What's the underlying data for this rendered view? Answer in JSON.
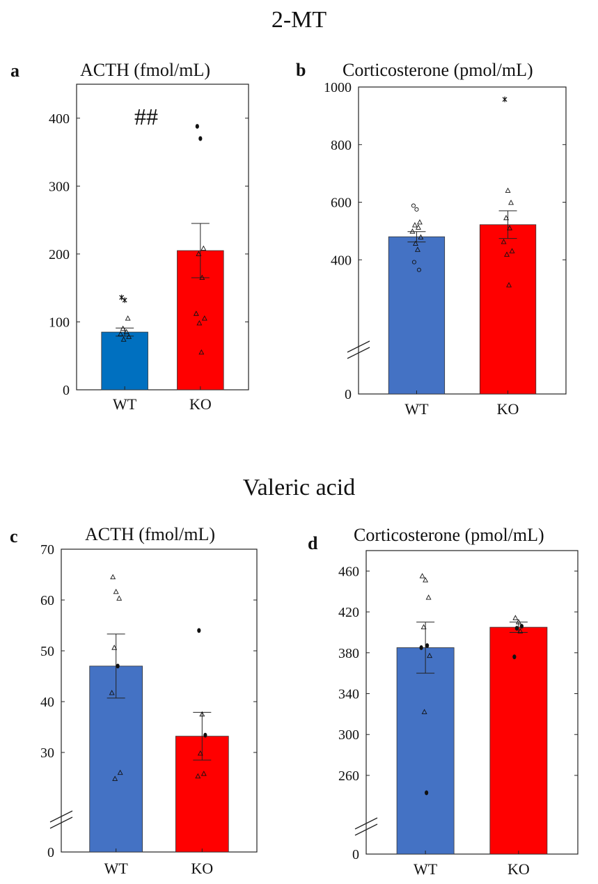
{
  "sections": {
    "top_title": "2-MT",
    "bottom_title": "Valeric acid"
  },
  "colors": {
    "WT_blue_a": "#0070c0",
    "WT_blue": "#4472c4",
    "KO_red": "#ff0000"
  },
  "panels": {
    "a": {
      "letter": "a",
      "title": "ACTH (fmol/mL)",
      "annotation": "##"
    },
    "b": {
      "letter": "b",
      "title": "Corticosterone (pmol/mL)"
    },
    "c": {
      "letter": "c",
      "title": "ACTH (fmol/mL)"
    },
    "d": {
      "letter": "d",
      "title": "Corticosterone (pmol/mL)"
    }
  },
  "chart_data": [
    {
      "id": "a",
      "type": "bar",
      "title": "ACTH (fmol/mL)",
      "categories": [
        "WT",
        "KO"
      ],
      "values": [
        85,
        205
      ],
      "sem": [
        6,
        40
      ],
      "colors": [
        "#0070c0",
        "#ff0000"
      ],
      "ylim": [
        0,
        450
      ],
      "yticks": [
        0,
        100,
        200,
        300,
        400
      ],
      "axis_break": false,
      "annotation": "##",
      "points": [
        {
          "group": "WT",
          "marker": "star",
          "y": 136
        },
        {
          "group": "WT",
          "marker": "star",
          "y": 132
        },
        {
          "group": "WT",
          "marker": "triangle",
          "y": 105
        },
        {
          "group": "WT",
          "marker": "triangle",
          "y": 90
        },
        {
          "group": "WT",
          "marker": "triangle",
          "y": 85
        },
        {
          "group": "WT",
          "marker": "triangle",
          "y": 82
        },
        {
          "group": "WT",
          "marker": "triangle",
          "y": 78
        },
        {
          "group": "WT",
          "marker": "triangle",
          "y": 74
        },
        {
          "group": "KO",
          "marker": "dot",
          "y": 388
        },
        {
          "group": "KO",
          "marker": "dot",
          "y": 370
        },
        {
          "group": "KO",
          "marker": "triangle",
          "y": 208
        },
        {
          "group": "KO",
          "marker": "triangle",
          "y": 200
        },
        {
          "group": "KO",
          "marker": "triangle",
          "y": 165
        },
        {
          "group": "KO",
          "marker": "triangle",
          "y": 112
        },
        {
          "group": "KO",
          "marker": "triangle",
          "y": 105
        },
        {
          "group": "KO",
          "marker": "triangle",
          "y": 98
        },
        {
          "group": "KO",
          "marker": "triangle",
          "y": 55
        }
      ]
    },
    {
      "id": "b",
      "type": "bar",
      "title": "Corticosterone (pmol/mL)",
      "categories": [
        "WT",
        "KO"
      ],
      "values": [
        480,
        522
      ],
      "sem": [
        18,
        48
      ],
      "colors": [
        "#4472c4",
        "#ff0000"
      ],
      "ylim": [
        200,
        1000
      ],
      "yticks": [
        400,
        600,
        800,
        1000
      ],
      "zero_label": "0",
      "axis_break": true,
      "points": [
        {
          "group": "WT",
          "marker": "circle",
          "y": 588
        },
        {
          "group": "WT",
          "marker": "circle",
          "y": 575
        },
        {
          "group": "WT",
          "marker": "triangle",
          "y": 530
        },
        {
          "group": "WT",
          "marker": "triangle",
          "y": 520
        },
        {
          "group": "WT",
          "marker": "triangle",
          "y": 512
        },
        {
          "group": "WT",
          "marker": "triangle",
          "y": 498
        },
        {
          "group": "WT",
          "marker": "triangle",
          "y": 478
        },
        {
          "group": "WT",
          "marker": "triangle",
          "y": 456
        },
        {
          "group": "WT",
          "marker": "triangle",
          "y": 435
        },
        {
          "group": "WT",
          "marker": "circle",
          "y": 392
        },
        {
          "group": "WT",
          "marker": "circle",
          "y": 365
        },
        {
          "group": "KO",
          "marker": "star",
          "y": 957
        },
        {
          "group": "KO",
          "marker": "triangle",
          "y": 640
        },
        {
          "group": "KO",
          "marker": "triangle",
          "y": 598
        },
        {
          "group": "KO",
          "marker": "triangle",
          "y": 545
        },
        {
          "group": "KO",
          "marker": "triangle",
          "y": 510
        },
        {
          "group": "KO",
          "marker": "triangle",
          "y": 462
        },
        {
          "group": "KO",
          "marker": "triangle",
          "y": 430
        },
        {
          "group": "KO",
          "marker": "triangle",
          "y": 418
        },
        {
          "group": "KO",
          "marker": "triangle",
          "y": 312
        }
      ]
    },
    {
      "id": "c",
      "type": "bar",
      "title": "ACTH (fmol/mL)",
      "categories": [
        "WT",
        "KO"
      ],
      "values": [
        47,
        33.2
      ],
      "sem": [
        6.3,
        4.7
      ],
      "colors": [
        "#4472c4",
        "#ff0000"
      ],
      "ylim": [
        20,
        70
      ],
      "yticks": [
        30,
        40,
        50,
        60,
        70
      ],
      "zero_label": "0",
      "axis_break": true,
      "points": [
        {
          "group": "WT",
          "marker": "triangle",
          "y": 64.5
        },
        {
          "group": "WT",
          "marker": "triangle",
          "y": 61.6
        },
        {
          "group": "WT",
          "marker": "triangle",
          "y": 60.3
        },
        {
          "group": "WT",
          "marker": "triangle",
          "y": 50.6
        },
        {
          "group": "WT",
          "marker": "dot",
          "y": 47
        },
        {
          "group": "WT",
          "marker": "triangle",
          "y": 41.7
        },
        {
          "group": "WT",
          "marker": "triangle",
          "y": 26
        },
        {
          "group": "WT",
          "marker": "triangle",
          "y": 24.8
        },
        {
          "group": "KO",
          "marker": "dot",
          "y": 54
        },
        {
          "group": "KO",
          "marker": "triangle",
          "y": 37.5
        },
        {
          "group": "KO",
          "marker": "dot",
          "y": 33.4
        },
        {
          "group": "KO",
          "marker": "triangle",
          "y": 29.8
        },
        {
          "group": "KO",
          "marker": "triangle",
          "y": 25.8
        },
        {
          "group": "KO",
          "marker": "triangle",
          "y": 25.3
        }
      ]
    },
    {
      "id": "d",
      "type": "bar",
      "title": "Corticosterone (pmol/mL)",
      "categories": [
        "WT",
        "KO"
      ],
      "values": [
        385,
        405
      ],
      "sem": [
        25,
        5
      ],
      "colors": [
        "#4472c4",
        "#ff0000"
      ],
      "ylim": [
        230,
        480
      ],
      "yticks": [
        260,
        300,
        340,
        380,
        420,
        460
      ],
      "zero_label": "0",
      "axis_break": true,
      "points": [
        {
          "group": "WT",
          "marker": "triangle",
          "y": 455
        },
        {
          "group": "WT",
          "marker": "triangle",
          "y": 451
        },
        {
          "group": "WT",
          "marker": "triangle",
          "y": 434
        },
        {
          "group": "WT",
          "marker": "triangle",
          "y": 405
        },
        {
          "group": "WT",
          "marker": "dot",
          "y": 387
        },
        {
          "group": "WT",
          "marker": "dot",
          "y": 385
        },
        {
          "group": "WT",
          "marker": "triangle",
          "y": 377
        },
        {
          "group": "WT",
          "marker": "triangle",
          "y": 322
        },
        {
          "group": "WT",
          "marker": "dot",
          "y": 243
        },
        {
          "group": "KO",
          "marker": "triangle",
          "y": 414
        },
        {
          "group": "KO",
          "marker": "triangle",
          "y": 410
        },
        {
          "group": "KO",
          "marker": "dot",
          "y": 406
        },
        {
          "group": "KO",
          "marker": "dot",
          "y": 404
        },
        {
          "group": "KO",
          "marker": "triangle",
          "y": 401
        },
        {
          "group": "KO",
          "marker": "dot",
          "y": 376
        }
      ]
    }
  ]
}
